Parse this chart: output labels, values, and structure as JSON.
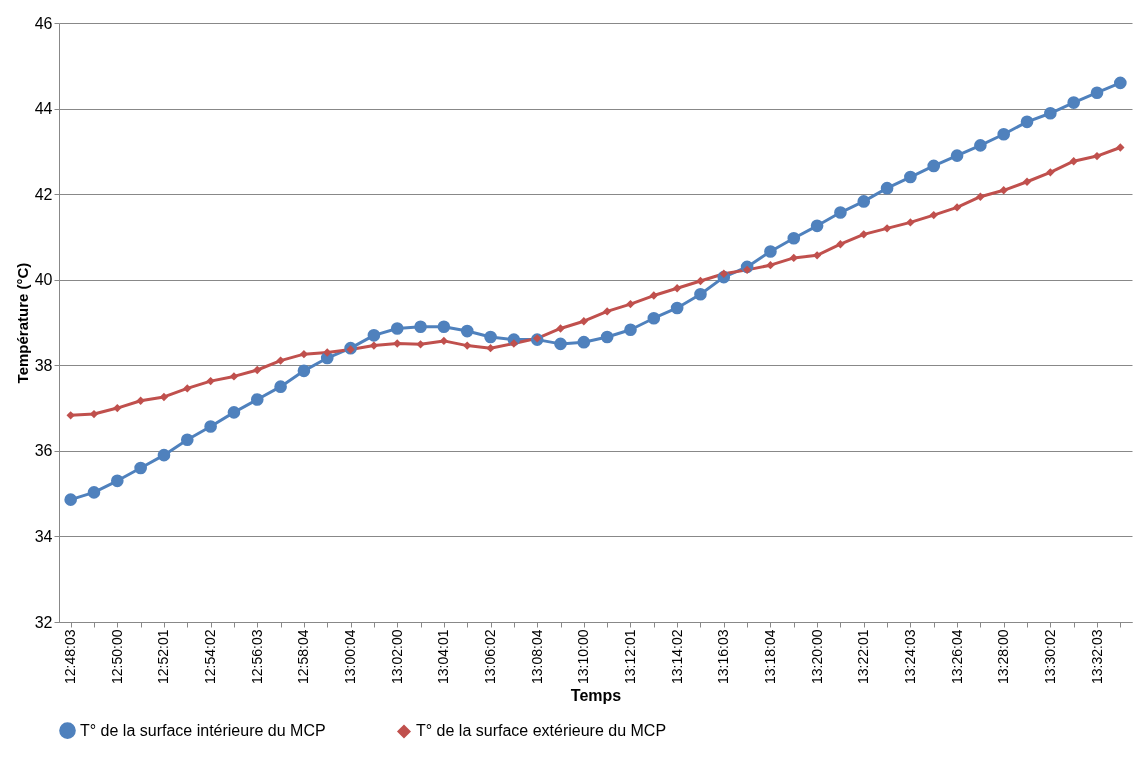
{
  "chart_data": {
    "type": "line",
    "xlabel": "Temps",
    "ylabel": "Température (°C)",
    "categories": [
      "12:48:03",
      null,
      "12:50:00",
      null,
      "12:52:01",
      null,
      "12:54:02",
      null,
      "12:56:03",
      null,
      "12:58:04",
      null,
      "13:00:04",
      null,
      "13:02:00",
      null,
      "13:04:01",
      null,
      "13:06:02",
      null,
      "13:08:04",
      null,
      "13:10:00",
      null,
      "13:12:01",
      null,
      "13:14:02",
      null,
      "13:16:03",
      null,
      "13:18:04",
      null,
      "13:20:00",
      null,
      "13:22:01",
      null,
      "13:24:03",
      null,
      "13:26:04",
      null,
      "13:28:00",
      null,
      "13:30:02",
      null,
      "13:32:03",
      null
    ],
    "series": [
      {
        "name": "T° de la surface  intérieure du MCP",
        "color": "#4f81bd",
        "marker": "circle",
        "values": [
          34.86,
          35.03,
          35.3,
          35.6,
          35.9,
          36.26,
          36.57,
          36.9,
          37.2,
          37.5,
          37.87,
          38.17,
          38.4,
          38.7,
          38.86,
          38.9,
          38.9,
          38.8,
          38.66,
          38.6,
          38.6,
          38.5,
          38.54,
          38.66,
          38.83,
          39.1,
          39.34,
          39.66,
          40.06,
          40.3,
          40.66,
          40.97,
          41.26,
          41.57,
          41.83,
          42.14,
          42.4,
          42.66,
          42.9,
          43.14,
          43.4,
          43.69,
          43.89,
          44.14,
          44.37,
          44.6
        ]
      },
      {
        "name": "T° de la surface extérieure  du MCP",
        "color": "#c0504d",
        "marker": "diamond",
        "values": [
          36.83,
          36.86,
          37.0,
          37.17,
          37.26,
          37.46,
          37.63,
          37.74,
          37.89,
          38.11,
          38.26,
          38.3,
          38.37,
          38.46,
          38.51,
          38.49,
          38.57,
          38.46,
          38.4,
          38.51,
          38.63,
          38.86,
          39.03,
          39.26,
          39.43,
          39.63,
          39.8,
          39.97,
          40.14,
          40.23,
          40.34,
          40.51,
          40.57,
          40.83,
          41.06,
          41.2,
          41.34,
          41.51,
          41.69,
          41.94,
          42.09,
          42.29,
          42.51,
          42.77,
          42.89,
          43.09
        ]
      }
    ],
    "ylim": [
      32,
      46
    ],
    "yticks": [
      32,
      34,
      36,
      38,
      40,
      42,
      44,
      46
    ],
    "grid": "y",
    "legend": "bottom",
    "line_style": "solid"
  }
}
